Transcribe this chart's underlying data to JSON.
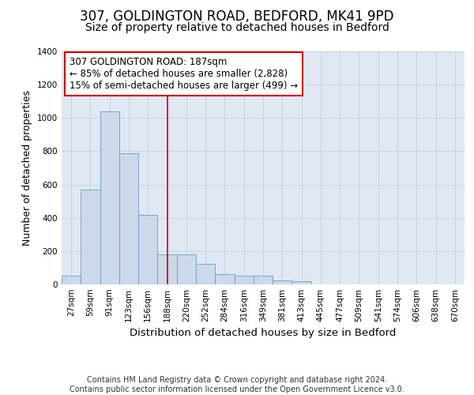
{
  "title": "307, GOLDINGTON ROAD, BEDFORD, MK41 9PD",
  "subtitle": "Size of property relative to detached houses in Bedford",
  "xlabel": "Distribution of detached houses by size in Bedford",
  "ylabel": "Number of detached properties",
  "categories": [
    "27sqm",
    "59sqm",
    "91sqm",
    "123sqm",
    "156sqm",
    "188sqm",
    "220sqm",
    "252sqm",
    "284sqm",
    "316sqm",
    "349sqm",
    "381sqm",
    "413sqm",
    "445sqm",
    "477sqm",
    "509sqm",
    "541sqm",
    "574sqm",
    "606sqm",
    "638sqm",
    "670sqm"
  ],
  "values": [
    50,
    570,
    1040,
    790,
    420,
    180,
    180,
    125,
    60,
    50,
    50,
    25,
    20,
    0,
    0,
    0,
    0,
    0,
    0,
    0,
    0
  ],
  "bar_color": "#ccd9ea",
  "bar_edge_color": "#6a9cc8",
  "grid_color": "#c5cfe0",
  "background_color": "#e0e8f3",
  "annotation_text": "307 GOLDINGTON ROAD: 187sqm\n← 85% of detached houses are smaller (2,828)\n15% of semi-detached houses are larger (499) →",
  "vline_x_index": 5,
  "vline_color": "#cc0000",
  "annotation_box_color": "#ffffff",
  "annotation_box_edge": "#cc0000",
  "footer_text": "Contains HM Land Registry data © Crown copyright and database right 2024.\nContains public sector information licensed under the Open Government Licence v3.0.",
  "ylim": [
    0,
    1400
  ],
  "yticks": [
    0,
    200,
    400,
    600,
    800,
    1000,
    1200,
    1400
  ],
  "title_fontsize": 12,
  "subtitle_fontsize": 10,
  "axis_label_fontsize": 9,
  "tick_fontsize": 7.5,
  "footer_fontsize": 7,
  "annotation_fontsize": 8.5
}
